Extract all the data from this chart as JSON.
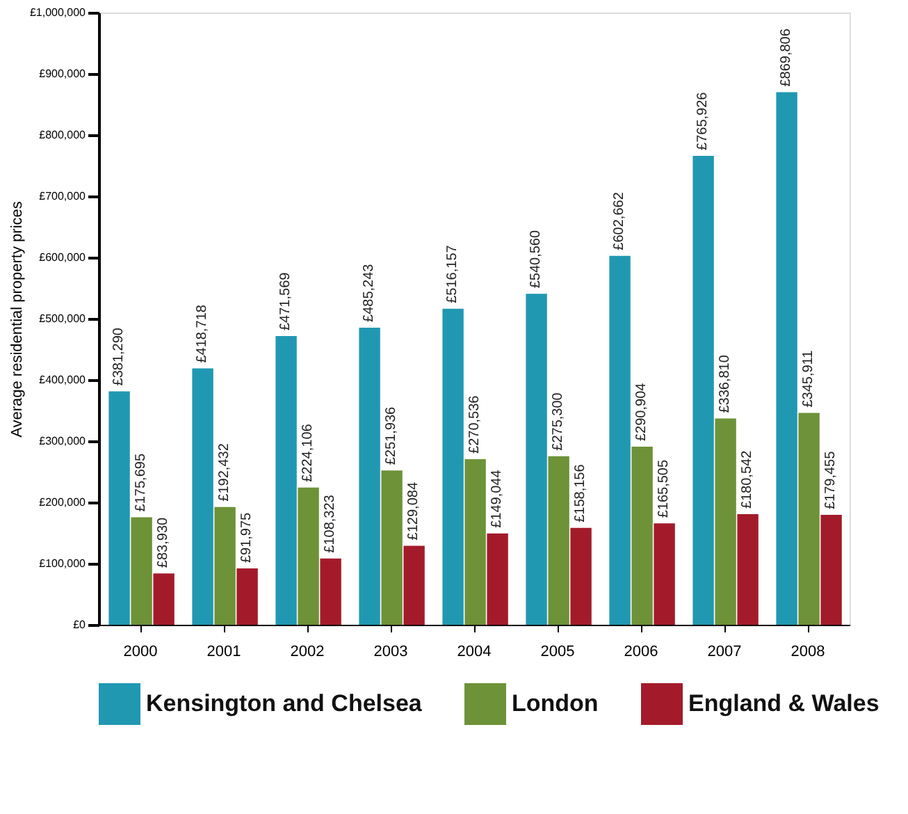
{
  "chart_data": {
    "type": "bar",
    "ylabel": "Average residential property prices",
    "categories": [
      "2000",
      "2001",
      "2002",
      "2003",
      "2004",
      "2005",
      "2006",
      "2007",
      "2008"
    ],
    "series": [
      {
        "name": "Kensington and Chelsea",
        "color": "#2198b2",
        "values": [
          381290,
          418718,
          471569,
          485243,
          516157,
          540560,
          602662,
          765926,
          869806
        ],
        "value_labels": [
          "£381,290",
          "£418,718",
          "£471,569",
          "£485,243",
          "£516,157",
          "£540,560",
          "£602,662",
          "£765,926",
          "£869,806"
        ]
      },
      {
        "name": "London",
        "color": "#6e9238",
        "values": [
          175695,
          192432,
          224106,
          251936,
          270536,
          275300,
          290904,
          336810,
          345911
        ],
        "value_labels": [
          "£175,695",
          "£192,432",
          "£224,106",
          "£251,936",
          "£270,536",
          "£275,300",
          "£290,904",
          "£336,810",
          "£345,911"
        ]
      },
      {
        "name": "England & Wales",
        "color": "#a31b2b",
        "values": [
          83930,
          91975,
          108323,
          129084,
          149044,
          158156,
          165505,
          180542,
          179455
        ],
        "value_labels": [
          "£83,930",
          "£91,975",
          "£108,323",
          "£129,084",
          "£149,044",
          "£158,156",
          "£165,505",
          "£180,542",
          "£179,455"
        ]
      }
    ],
    "ylim": [
      0,
      1000000
    ],
    "yticks": [
      {
        "value": 0,
        "label": "£0"
      },
      {
        "value": 100000,
        "label": "£100,000"
      },
      {
        "value": 200000,
        "label": "£200,000"
      },
      {
        "value": 300000,
        "label": "£300,000"
      },
      {
        "value": 400000,
        "label": "£400,000"
      },
      {
        "value": 500000,
        "label": "£500,000"
      },
      {
        "value": 600000,
        "label": "£600,000"
      },
      {
        "value": 700000,
        "label": "£700,000"
      },
      {
        "value": 800000,
        "label": "£800,000"
      },
      {
        "value": 900000,
        "label": "£900,000"
      },
      {
        "value": 1000000,
        "label": "£1,000,000"
      }
    ],
    "grid": false,
    "legend": "bottom"
  }
}
